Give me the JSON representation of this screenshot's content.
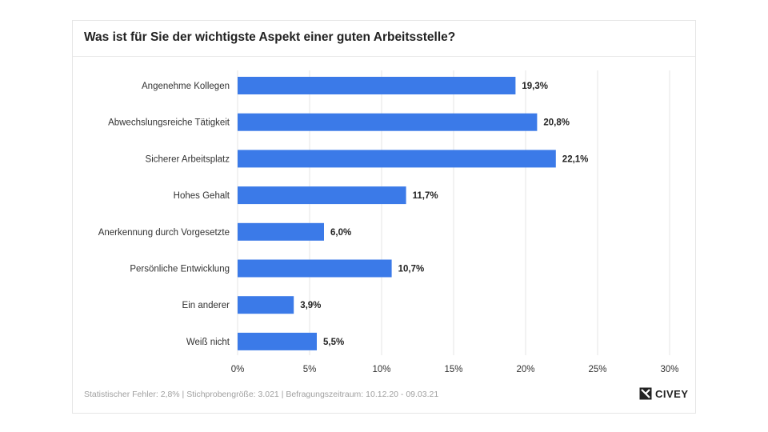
{
  "title": "Was ist für Sie der wichtigste Aspekt einer guten Arbeitsstelle?",
  "footer": "Statistischer Fehler: 2,8% | Stichprobengröße: 3.021 | Befragungszeitraum: 10.12.20 - 09.03.21",
  "brand": "CIVEY",
  "colors": {
    "bar": "#3b7ae8",
    "grid": "#e6e6e6",
    "text": "#333333"
  },
  "chart_data": {
    "type": "bar",
    "orientation": "horizontal",
    "categories": [
      "Angenehme Kollegen",
      "Abwechslungsreiche Tätigkeit",
      "Sicherer Arbeitsplatz",
      "Hohes Gehalt",
      "Anerkennung durch Vorgesetzte",
      "Persönliche Entwicklung",
      "Ein anderer",
      "Weiß nicht"
    ],
    "values": [
      19.3,
      20.8,
      22.1,
      11.7,
      6.0,
      10.7,
      3.9,
      5.5
    ],
    "value_labels": [
      "19,3%",
      "20,8%",
      "22,1%",
      "11,7%",
      "6,0%",
      "10,7%",
      "3,9%",
      "5,5%"
    ],
    "xlim": [
      0,
      30
    ],
    "xticks": [
      0,
      5,
      10,
      15,
      20,
      25,
      30
    ],
    "xtick_labels": [
      "0%",
      "5%",
      "10%",
      "15%",
      "20%",
      "25%",
      "30%"
    ],
    "grid": true
  }
}
